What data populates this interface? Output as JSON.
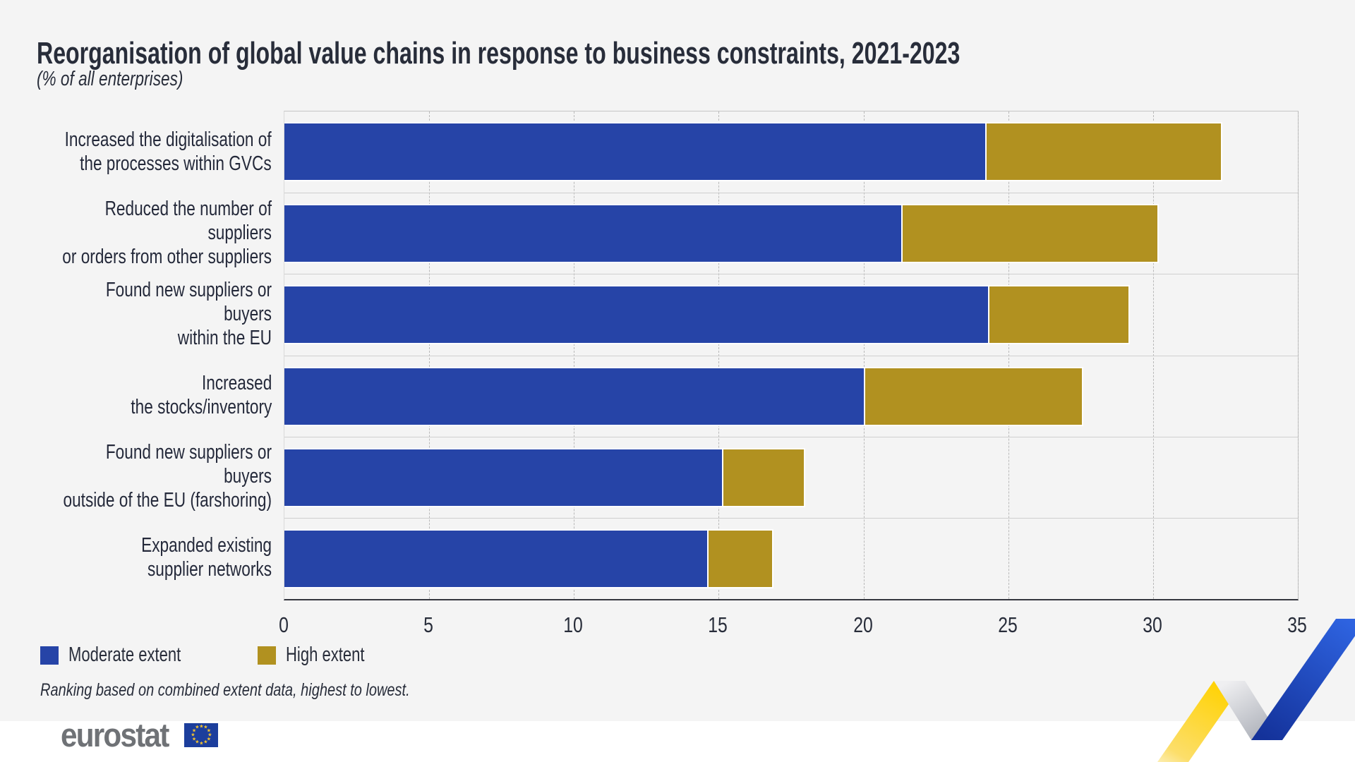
{
  "header": {
    "title": "Reorganisation of global value chains in response to business constraints, 2021-2023",
    "subtitle": "(% of all enterprises)"
  },
  "chart_data": {
    "type": "bar",
    "orientation": "horizontal",
    "stacked": true,
    "title": "Reorganisation of global value chains in response to business constraints, 2021-2023",
    "subtitle": "(% of all enterprises)",
    "unit": "% of all enterprises",
    "categories": [
      "Increased the digitalisation of\nthe processes within GVCs",
      "Reduced the number of suppliers\nor orders from other suppliers",
      "Found new suppliers or buyers\nwithin the EU",
      "Increased\nthe stocks/inventory",
      "Found new suppliers or buyers\noutside of the EU (farshoring)",
      "Expanded existing\nsupplier networks"
    ],
    "series": [
      {
        "name": "Moderate extent",
        "color": "#2644A7",
        "values": [
          24.2,
          21.3,
          24.3,
          20.0,
          15.1,
          14.6
        ]
      },
      {
        "name": "High extent",
        "color": "#B19120",
        "values": [
          8.1,
          8.8,
          4.8,
          7.5,
          2.8,
          2.2
        ]
      }
    ],
    "xlim": [
      0,
      35
    ],
    "xticks": [
      0,
      5,
      10,
      15,
      20,
      25,
      30,
      35
    ],
    "grid": "vertical-dashed",
    "legend_position": "bottom-left"
  },
  "footnote": "Ranking based on combined extent data, highest to lowest.",
  "logo": {
    "text": "eurostat"
  },
  "colors": {
    "background_card": "#F4F4F4",
    "bar_moderate": "#2644A7",
    "bar_high": "#B19120",
    "text": "#282D3A",
    "ribbon_yellow": "#FFD204",
    "ribbon_blue": "#2E63E0",
    "flag_blue": "#1C3E9C",
    "flag_stars": "#F8C62D"
  }
}
